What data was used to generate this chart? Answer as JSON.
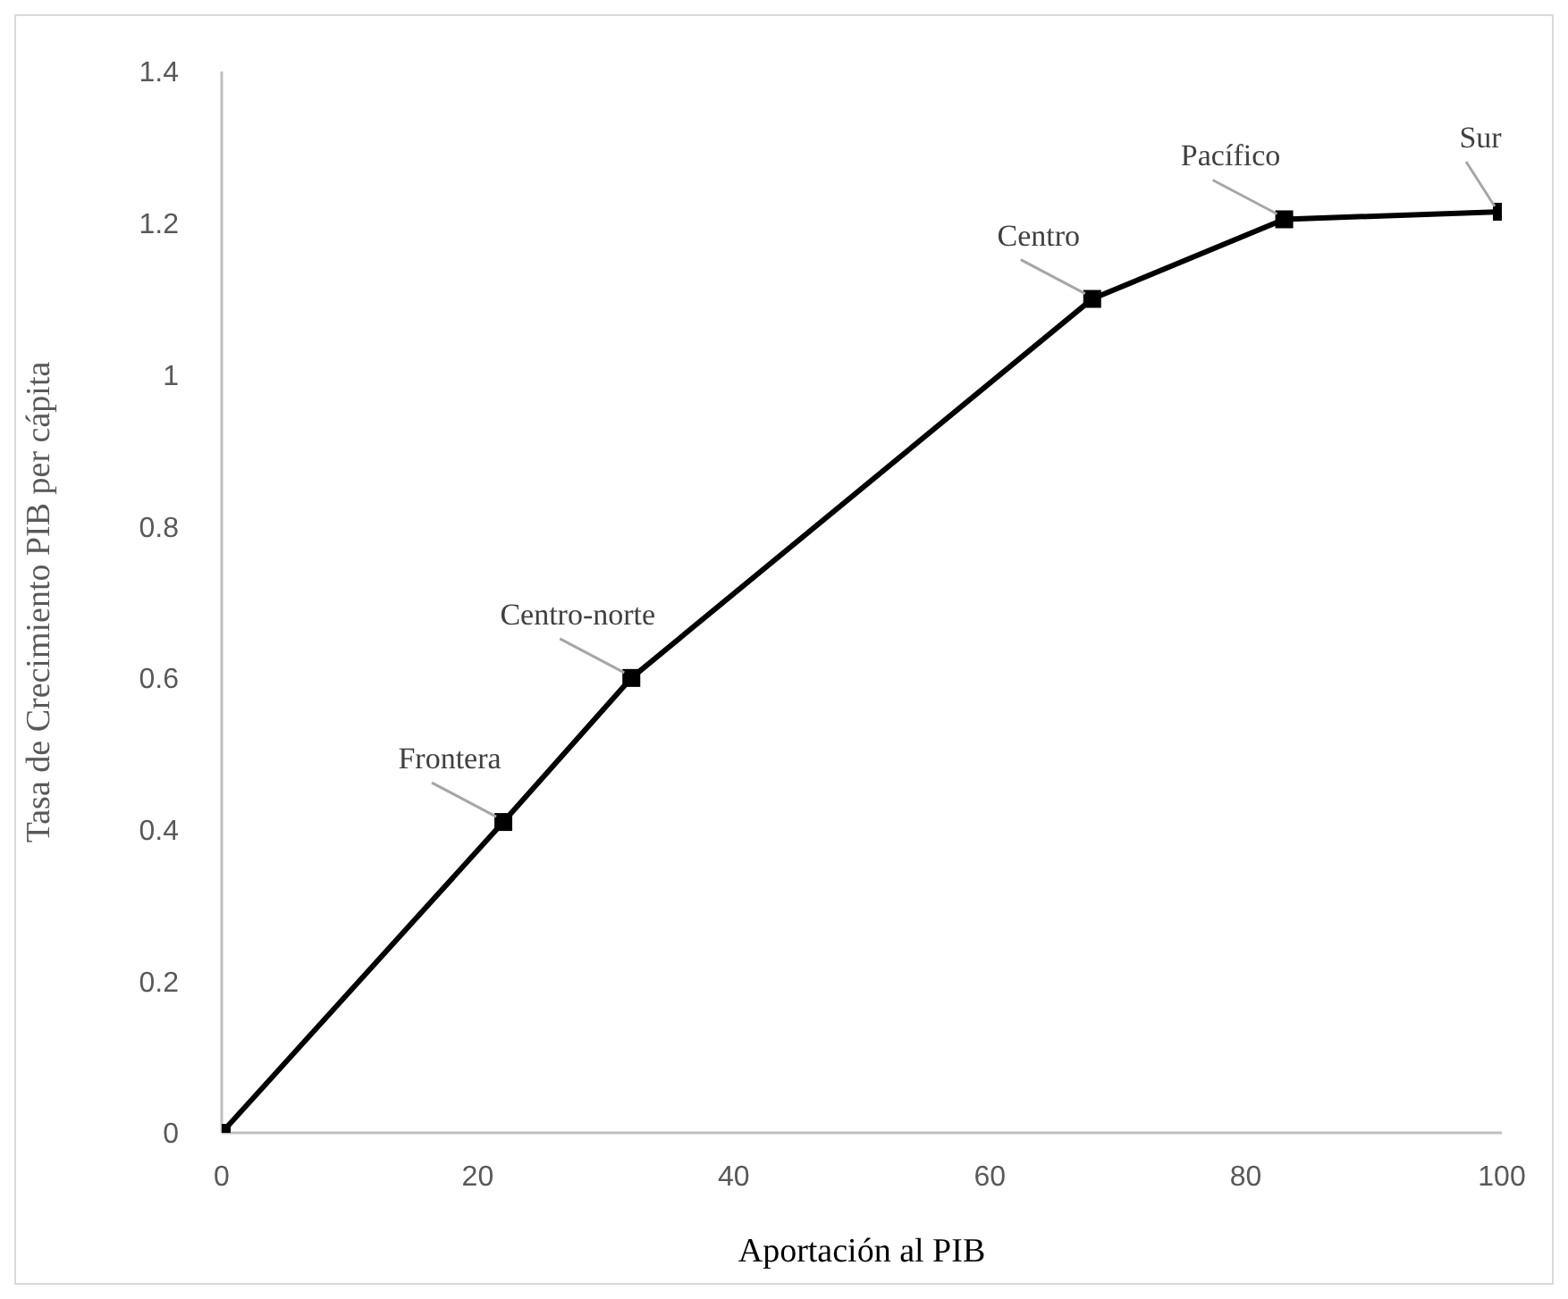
{
  "chart_data": {
    "type": "line",
    "xlabel": "Aportación al PIB",
    "ylabel": "Tasa de Crecimiento PIB per cápita",
    "x": [
      0,
      22,
      32,
      68,
      83,
      100
    ],
    "series": [
      {
        "color": "#000000",
        "values": [
          0,
          0.41,
          0.6,
          1.1,
          1.205,
          1.215
        ]
      }
    ],
    "xlim": [
      0,
      100
    ],
    "xticks": [
      0,
      20,
      40,
      60,
      80,
      100
    ],
    "ylim": [
      0,
      1.4
    ],
    "yticks": [
      0,
      0.2,
      0.4,
      0.6,
      0.8,
      1,
      1.2,
      1.4
    ],
    "grid": false,
    "legend": false,
    "marker": "square",
    "line_style": "solid",
    "annotations": [
      {
        "text": "Frontera",
        "x": 22,
        "y": 0.41
      },
      {
        "text": "Centro-norte",
        "x": 32,
        "y": 0.6
      },
      {
        "text": "Centro",
        "x": 68,
        "y": 1.1
      },
      {
        "text": "Pacífico",
        "x": 83,
        "y": 1.205
      },
      {
        "text": "Sur",
        "x": 100,
        "y": 1.215
      }
    ]
  }
}
